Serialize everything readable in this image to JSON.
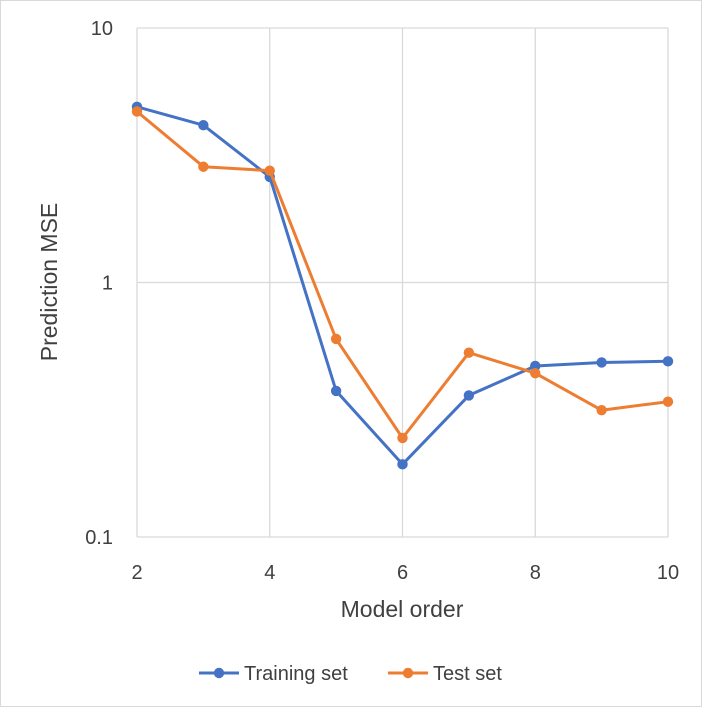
{
  "chart_data": {
    "type": "line",
    "title": "",
    "xlabel": "Model order",
    "ylabel": "Prediction MSE",
    "x": [
      2,
      3,
      4,
      5,
      6,
      7,
      8,
      9,
      10
    ],
    "xlim": [
      2,
      10
    ],
    "xticks": [
      "2",
      "4",
      "6",
      "8",
      "10"
    ],
    "xtick_values": [
      2,
      4,
      6,
      8,
      10
    ],
    "ylim": [
      0.1,
      10
    ],
    "yscale": "log",
    "yticks": [
      "0.1",
      "1",
      "10"
    ],
    "ytick_values": [
      0.1,
      1,
      10
    ],
    "grid": true,
    "legend_position": "bottom",
    "series": [
      {
        "name": "Training set",
        "color": "#4472c4",
        "values": [
          4.9,
          4.15,
          2.6,
          0.375,
          0.193,
          0.36,
          0.47,
          0.485,
          0.49
        ]
      },
      {
        "name": "Test set",
        "color": "#ed7d31",
        "values": [
          4.7,
          2.85,
          2.75,
          0.6,
          0.245,
          0.53,
          0.44,
          0.315,
          0.34
        ]
      }
    ]
  }
}
